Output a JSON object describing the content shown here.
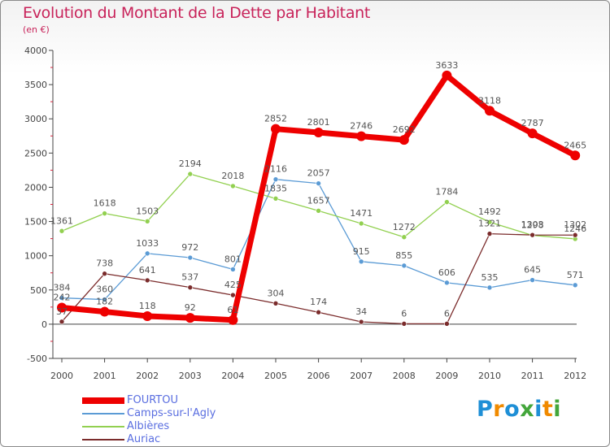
{
  "header": {
    "title": "Evolution du Montant de la Dette par Habitant",
    "subtitle": "(en €)"
  },
  "colors": {
    "title": "#c8235a",
    "legend_text": "#5a6ee0",
    "axis": "#444444",
    "ticks_minor": "#d9223c"
  },
  "chart_data": {
    "type": "line",
    "title": "Evolution du Montant de la Dette par Habitant",
    "subtitle": "(en €)",
    "xlabel": "",
    "ylabel": "",
    "ylim": [
      -500,
      4000
    ],
    "ytick_values": [
      -500,
      0,
      500,
      1000,
      1500,
      2000,
      2500,
      3000,
      3500,
      4000
    ],
    "ytick_labels": [
      "-500",
      "0",
      "500",
      "1000",
      "1500",
      "2000",
      "2500",
      "3000",
      "3500",
      "4000"
    ],
    "grid": false,
    "legend_position": "bottom-left",
    "x": [
      "2000",
      "2001",
      "2002",
      "2003",
      "2004",
      "2005",
      "2006",
      "2007",
      "2008",
      "2009",
      "2010",
      "2011",
      "2012"
    ],
    "series": [
      {
        "name": "FOURTOU",
        "color": "#ee0000",
        "values": [
          242,
          182,
          118,
          92,
          61,
          2852,
          2801,
          2746,
          2692,
          3633,
          3118,
          2787,
          2465
        ],
        "labels": [
          "242",
          "182",
          "118",
          "92",
          "61",
          "2852",
          "2801",
          "2746",
          "2692",
          "3633",
          "3118",
          "2787",
          "2465"
        ]
      },
      {
        "name": "Camps-sur-l'Agly",
        "color": "#5b9bd5",
        "values": [
          384,
          360,
          1033,
          972,
          801,
          2116,
          2057,
          915,
          855,
          606,
          535,
          645,
          571
        ],
        "labels": [
          "384",
          "360",
          "1033",
          "972",
          "801",
          "2116",
          "2057",
          "915",
          "855",
          "606",
          "535",
          "645",
          "571"
        ]
      },
      {
        "name": "Albières",
        "color": "#92d050",
        "values": [
          1361,
          1618,
          1503,
          2194,
          2018,
          1835,
          1657,
          1471,
          1272,
          1784,
          1492,
          1298,
          1246
        ],
        "labels": [
          "1361",
          "1618",
          "1503",
          "2194",
          "2018",
          "1835",
          "1657",
          "1471",
          "1272",
          "1784",
          "1492",
          "1298",
          "1246"
        ]
      },
      {
        "name": "Auriac",
        "color": "#7b2c2c",
        "values": [
          37,
          738,
          641,
          537,
          425,
          304,
          174,
          34,
          6,
          6,
          1321,
          1303,
          1302
        ],
        "labels": [
          "37",
          "738",
          "641",
          "537",
          "425",
          "304",
          "174",
          "34",
          "6",
          "6",
          "1321",
          "1303",
          "1302"
        ]
      }
    ]
  },
  "legend": {
    "items": [
      {
        "label": "FOURTOU",
        "color": "#ee0000"
      },
      {
        "label": "Camps-sur-l'Agly",
        "color": "#5b9bd5"
      },
      {
        "label": "Albières",
        "color": "#92d050"
      },
      {
        "label": "Auriac",
        "color": "#7b2c2c"
      }
    ]
  },
  "logo": {
    "text": "Proxiti",
    "letters": [
      "P",
      "r",
      "o",
      "x",
      "i",
      "t",
      "i"
    ],
    "letter_colors": [
      "#1e8fd6",
      "#f08a00",
      "#1e8fd6",
      "#43a63b",
      "#1e8fd6",
      "#f08a00",
      "#43a63b"
    ]
  }
}
